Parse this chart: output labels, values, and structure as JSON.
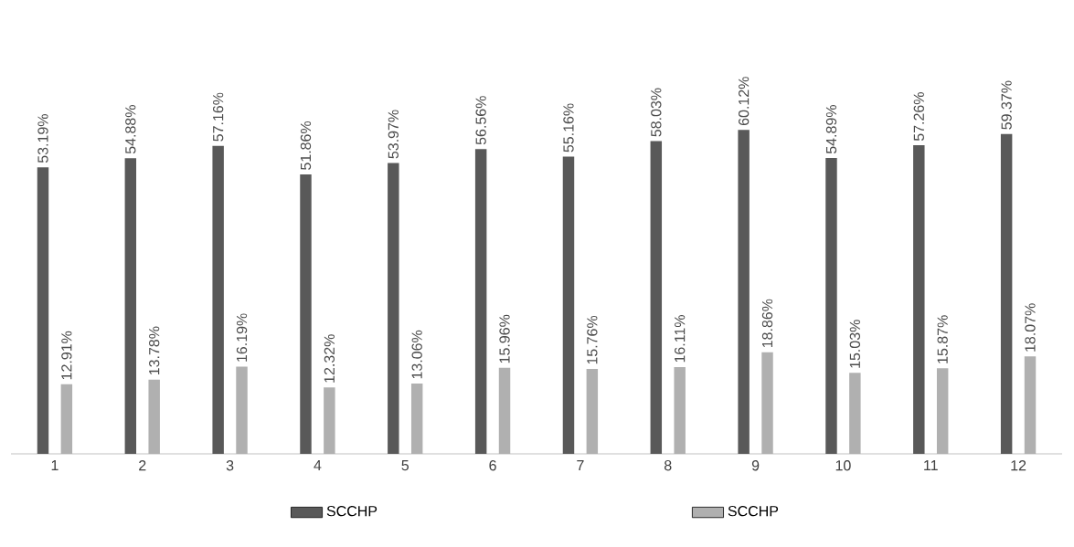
{
  "chart_data": {
    "type": "bar",
    "categories": [
      "1",
      "2",
      "3",
      "4",
      "5",
      "6",
      "7",
      "8",
      "9",
      "10",
      "11",
      "12"
    ],
    "series": [
      {
        "name": "SCCHP",
        "color": "#595959",
        "values": [
          53.19,
          54.88,
          57.16,
          51.86,
          53.97,
          56.56,
          55.16,
          58.03,
          60.12,
          54.89,
          57.26,
          59.37
        ],
        "value_labels": [
          "53.19%",
          "54.88%",
          "57.16%",
          "51.86%",
          "53.97%",
          "56.56%",
          "55.16%",
          "58.03%",
          "60.12%",
          "54.89%",
          "57.26%",
          "59.37%"
        ]
      },
      {
        "name": "SCCHP",
        "color": "#b0b0b0",
        "values": [
          12.91,
          13.78,
          16.19,
          12.32,
          13.06,
          15.96,
          15.76,
          16.11,
          18.86,
          15.03,
          15.87,
          18.07
        ],
        "value_labels": [
          "12.91%",
          "13.78%",
          "16.19%",
          "12.32%",
          "13.06%",
          "15.96%",
          "15.76%",
          "16.11%",
          "18.86%",
          "15.03%",
          "15.87%",
          "18.07%"
        ]
      }
    ],
    "legend": "bottom"
  }
}
